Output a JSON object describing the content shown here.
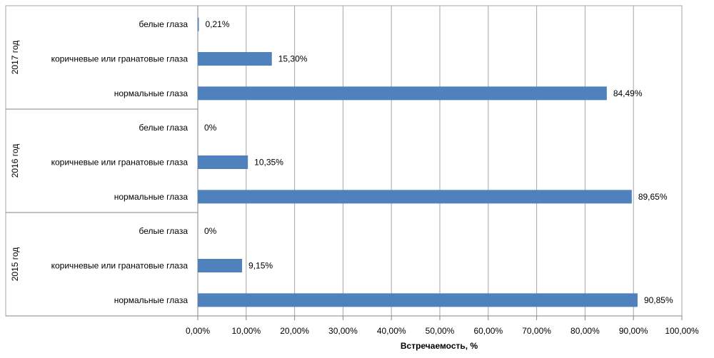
{
  "chart_data": {
    "type": "bar",
    "orientation": "horizontal",
    "xlabel": "Встречаемость, %",
    "xlim": [
      0,
      100
    ],
    "x_ticks": [
      "0,00%",
      "10,00%",
      "20,00%",
      "30,00%",
      "40,00%",
      "50,00%",
      "60,00%",
      "70,00%",
      "80,00%",
      "90,00%",
      "100,00%"
    ],
    "grid": true,
    "bar_color": "#4f81bd",
    "groups": [
      {
        "label": "2017 год",
        "rows": [
          {
            "category": "белые глаза",
            "value": 0.21,
            "value_label": "0,21%"
          },
          {
            "category": "коричневые или гранатовые глаза",
            "value": 15.3,
            "value_label": "15,30%"
          },
          {
            "category": "нормальные глаза",
            "value": 84.49,
            "value_label": "84,49%"
          }
        ]
      },
      {
        "label": "2016 год",
        "rows": [
          {
            "category": "белые глаза",
            "value": 0,
            "value_label": "0%"
          },
          {
            "category": "коричневые или гранатовые глаза",
            "value": 10.35,
            "value_label": "10,35%"
          },
          {
            "category": "нормальные глаза",
            "value": 89.65,
            "value_label": "89,65%"
          }
        ]
      },
      {
        "label": "2015 год",
        "rows": [
          {
            "category": "белые глаза",
            "value": 0,
            "value_label": "0%"
          },
          {
            "category": "коричневые или гранатовые глаза",
            "value": 9.15,
            "value_label": "9,15%"
          },
          {
            "category": "нормальные глаза",
            "value": 90.85,
            "value_label": "90,85%"
          }
        ]
      }
    ]
  }
}
